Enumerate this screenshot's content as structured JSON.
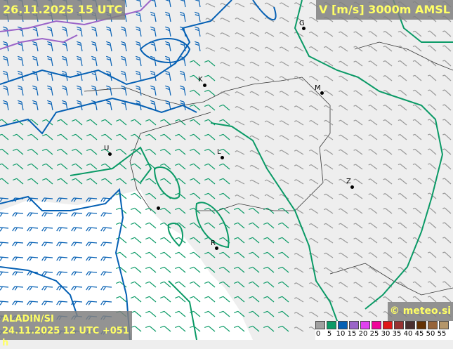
{
  "header": {
    "valid_time": "26.11.2025 15 UTC",
    "field": "V [m/s] 3000m AMSL"
  },
  "footer": {
    "model": "ALADIN/SI",
    "run": "24.11.2025 12 UTC +051 h",
    "copyright": "© meteo.si"
  },
  "legend": {
    "labels": [
      "0",
      "5",
      "10",
      "15",
      "20",
      "25",
      "30",
      "35",
      "40",
      "45",
      "50",
      "55"
    ],
    "colors": [
      "#a0a0a0",
      "#0a9a66",
      "#0560b4",
      "#9a64c8",
      "#e040f0",
      "#f0049a",
      "#e01818",
      "#963232",
      "#4a3030",
      "#643204",
      "#96643a",
      "#b4966a"
    ]
  },
  "cities": [
    {
      "label": "G"
    },
    {
      "label": "K"
    },
    {
      "label": "M"
    },
    {
      "label": "U"
    },
    {
      "label": "L"
    },
    {
      "label": "Z"
    },
    {
      "label": "R"
    }
  ],
  "colors": {
    "background": "#eeeeee",
    "sea": "#ffffff",
    "label_text": "#ffff66",
    "label_box": "#808080"
  }
}
